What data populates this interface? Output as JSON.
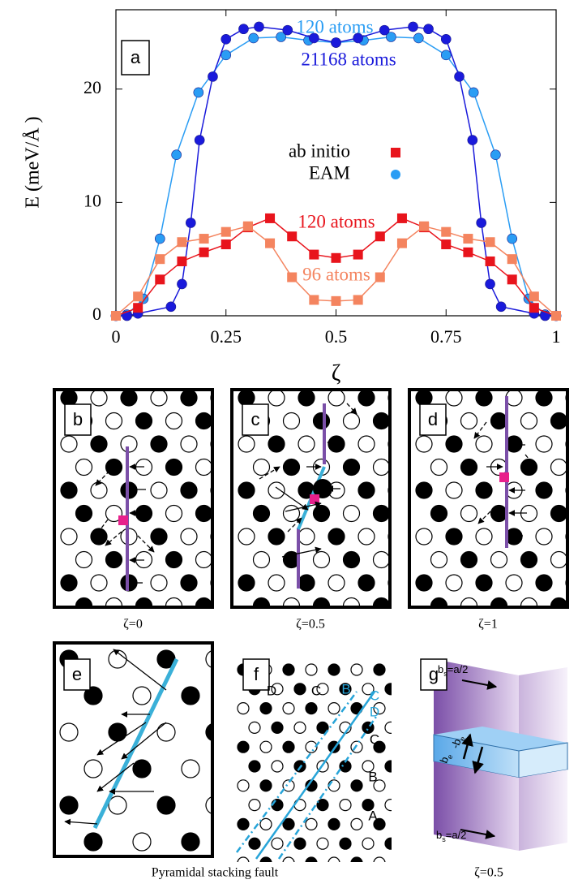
{
  "chart_data": {
    "type": "line",
    "panel_label": "a",
    "xlabel": "ζ",
    "ylabel": "E (meV/Å )",
    "xlim": [
      0,
      1
    ],
    "ylim": [
      0,
      27
    ],
    "xticks": [
      0,
      0.25,
      0.5,
      0.75,
      1
    ],
    "yticks": [
      0,
      10,
      20
    ],
    "legend": [
      {
        "name": "ab initio",
        "color": "#e8141c",
        "marker": "square"
      },
      {
        "name": "EAM",
        "color": "#2a9df4",
        "marker": "circle"
      }
    ],
    "series": [
      {
        "name": "120 atoms",
        "color": "#2a9df4",
        "marker": "circle",
        "x": [
          0,
          0.025,
          0.0625,
          0.1,
          0.1375,
          0.1875,
          0.25,
          0.3125,
          0.375,
          0.4375,
          0.5,
          0.5625,
          0.625,
          0.6875,
          0.75,
          0.8125,
          0.8625,
          0.9,
          0.9375,
          0.975,
          1
        ],
        "values": [
          0,
          0.1,
          1.5,
          6.8,
          14.2,
          19.7,
          23.0,
          24.5,
          24.6,
          24.3,
          24.1,
          24.3,
          24.6,
          24.5,
          23.0,
          19.7,
          14.2,
          6.8,
          1.5,
          0.1,
          0
        ]
      },
      {
        "name": "21168 atoms",
        "color": "#1a1adb",
        "marker": "circle",
        "x": [
          0,
          0.025,
          0.05,
          0.125,
          0.15,
          0.17,
          0.19,
          0.22,
          0.25,
          0.29,
          0.325,
          0.39,
          0.45,
          0.5,
          0.55,
          0.61,
          0.675,
          0.71,
          0.75,
          0.78,
          0.81,
          0.83,
          0.85,
          0.875,
          0.95,
          0.975,
          1
        ],
        "values": [
          0,
          0,
          0.2,
          0.8,
          2.8,
          8.2,
          15.5,
          21.1,
          24.4,
          25.3,
          25.5,
          25.2,
          24.5,
          24.1,
          24.5,
          25.2,
          25.5,
          25.3,
          24.4,
          21.1,
          15.5,
          8.2,
          2.8,
          0.8,
          0.2,
          0,
          0
        ]
      },
      {
        "name": "120 atoms",
        "color": "#e8141c",
        "marker": "square",
        "x": [
          0,
          0.05,
          0.1,
          0.15,
          0.2,
          0.25,
          0.3,
          0.35,
          0.4,
          0.45,
          0.5,
          0.55,
          0.6,
          0.65,
          0.7,
          0.75,
          0.8,
          0.85,
          0.9,
          0.95,
          1
        ],
        "values": [
          0,
          0.7,
          3.2,
          4.8,
          5.6,
          6.3,
          7.8,
          8.6,
          7.0,
          5.4,
          5.1,
          5.4,
          7.0,
          8.6,
          7.8,
          6.3,
          5.6,
          4.8,
          3.2,
          0.7,
          0
        ]
      },
      {
        "name": "96 atoms",
        "color": "#f4845f",
        "marker": "square",
        "x": [
          0,
          0.05,
          0.1,
          0.15,
          0.2,
          0.25,
          0.3,
          0.35,
          0.4,
          0.45,
          0.5,
          0.55,
          0.6,
          0.65,
          0.7,
          0.75,
          0.8,
          0.85,
          0.9,
          0.95,
          1
        ],
        "values": [
          0,
          1.7,
          5.0,
          6.5,
          6.8,
          7.4,
          7.9,
          6.4,
          3.4,
          1.4,
          1.3,
          1.4,
          3.4,
          6.4,
          7.9,
          7.4,
          6.8,
          6.5,
          5.0,
          1.7,
          0
        ]
      }
    ]
  },
  "panels": [
    {
      "label": "b",
      "caption": "ζ=0"
    },
    {
      "label": "c",
      "caption": "ζ=0.5"
    },
    {
      "label": "d",
      "caption": "ζ=1"
    },
    {
      "label": "e"
    },
    {
      "label": "f",
      "stacking_labels": [
        {
          "text": "D",
          "color": "#000000"
        },
        {
          "text": "C",
          "color": "#000000"
        },
        {
          "text": "B",
          "color": "#27a4d8"
        },
        {
          "text": "C",
          "color": "#27a4d8"
        },
        {
          "text": "D",
          "color": "#27a4d8"
        },
        {
          "text": "C",
          "color": "#000000"
        },
        {
          "text": "B",
          "color": "#000000"
        },
        {
          "text": "A",
          "color": "#000000"
        }
      ]
    },
    {
      "label": "g",
      "vectors": [
        {
          "b": "b",
          "sub": "s",
          "rest": "=a/2"
        },
        {
          "b": "-b",
          "sub": "e"
        },
        {
          "b": "b",
          "sub": "e"
        },
        {
          "b": "b",
          "sub": "s",
          "rest": "=a/2"
        }
      ]
    }
  ],
  "captions": [
    "Pyramidal stacking fault",
    "ζ=0.5"
  ]
}
